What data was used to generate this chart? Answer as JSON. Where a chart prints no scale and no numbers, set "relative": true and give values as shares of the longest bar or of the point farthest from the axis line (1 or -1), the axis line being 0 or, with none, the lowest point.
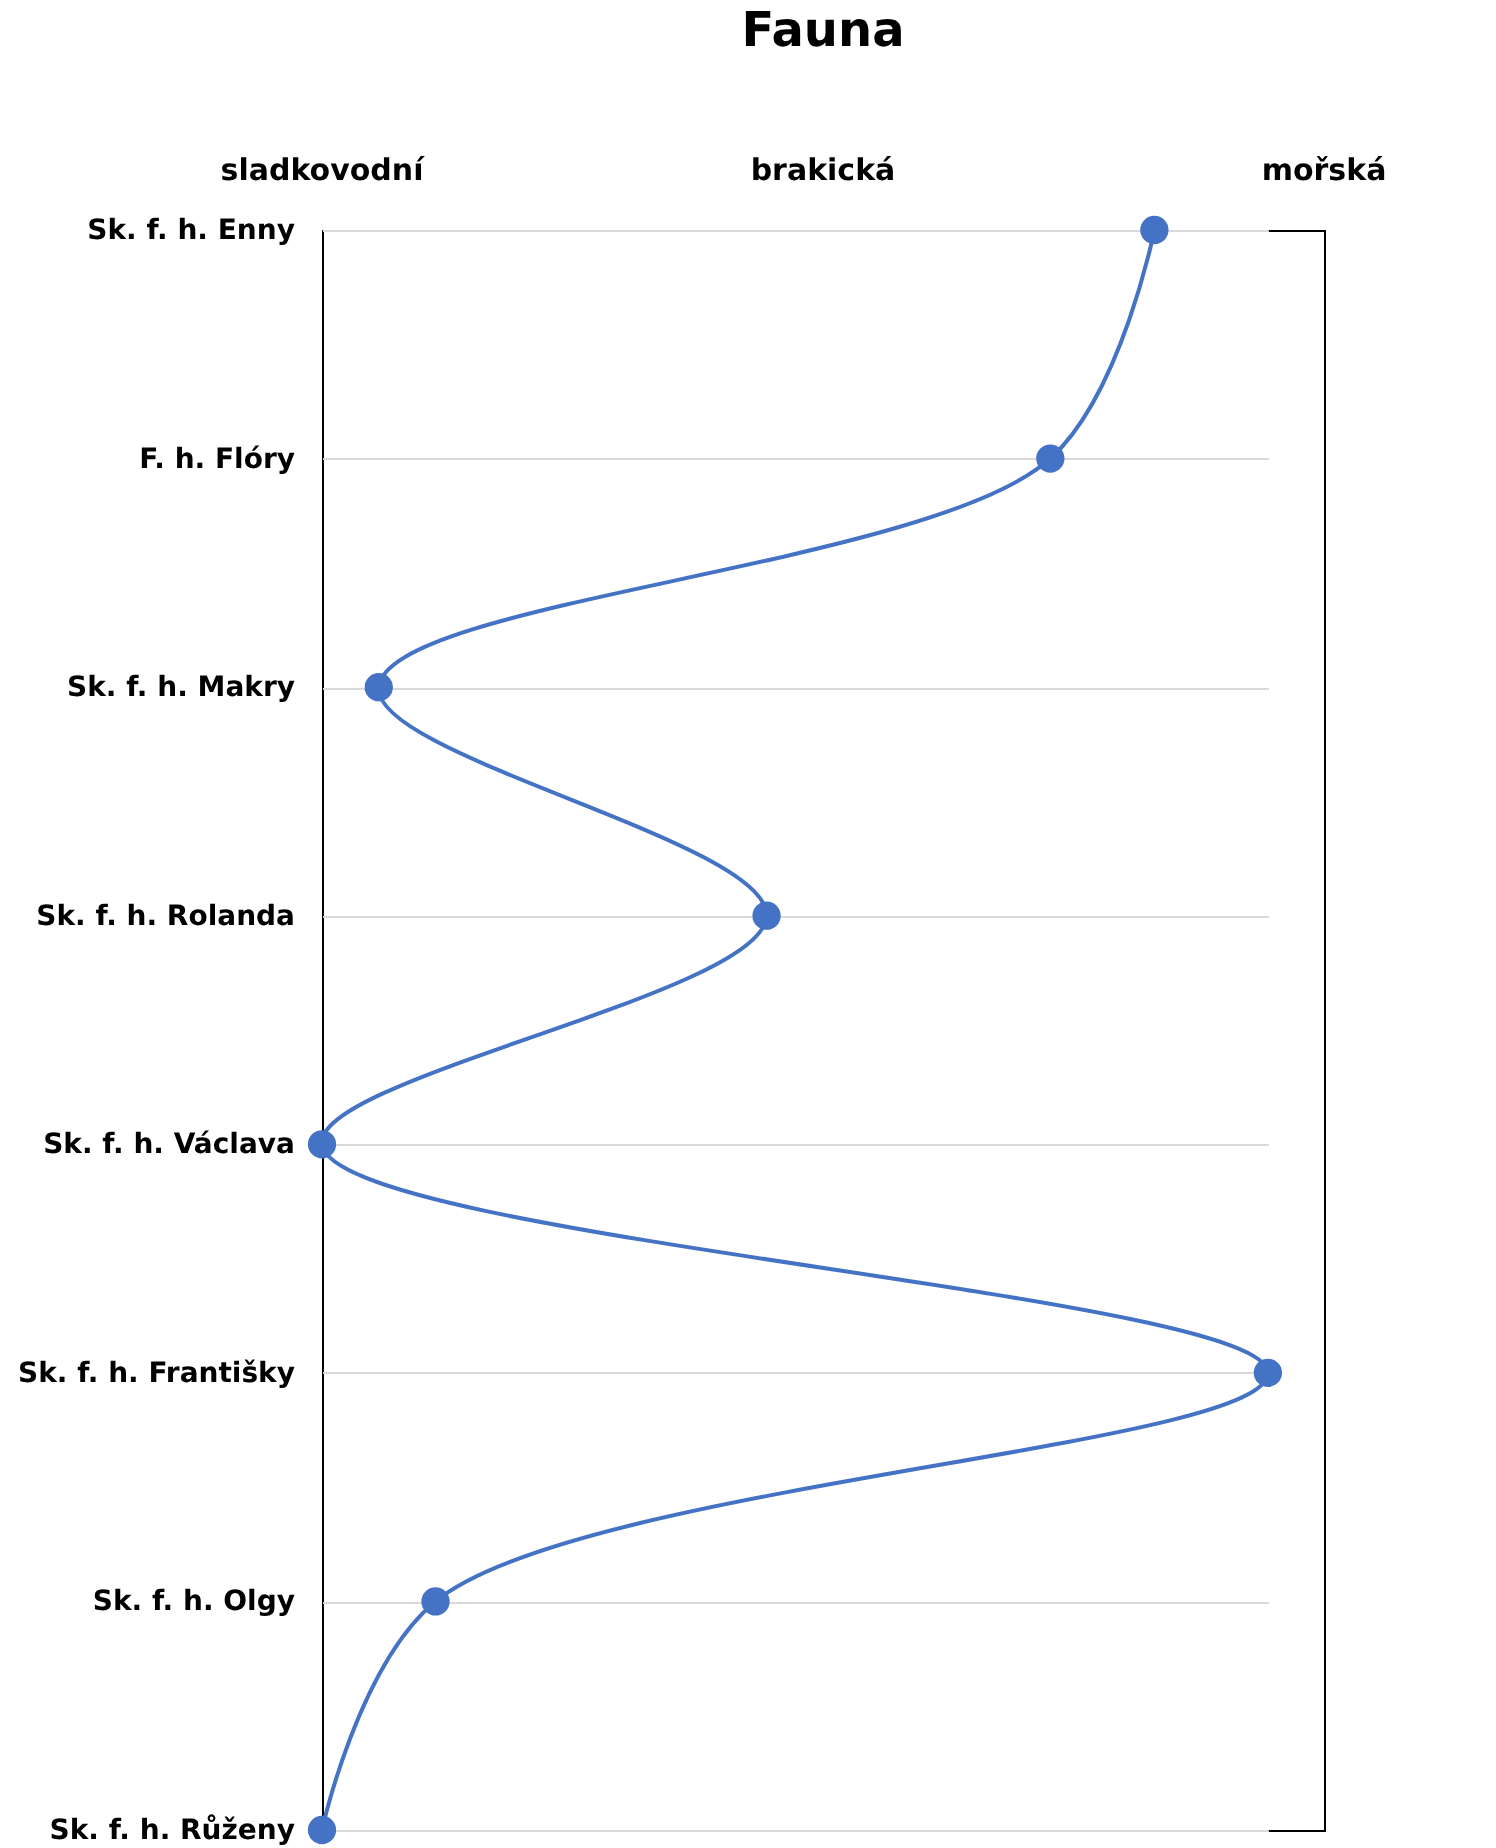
{
  "chart_data": {
    "type": "line",
    "title": "Fauna",
    "orientation": "horizontal",
    "relative": true,
    "categories": [
      "Sk. f. h. Enny",
      "F. h. Flóry",
      "Sk. f. h. Makry",
      "Sk. f. h. Rolanda",
      "Sk. f. h. Václava",
      "Sk. f. h. Františky",
      "Sk. f. h. Olgy",
      "Sk. f. h. Růženy"
    ],
    "values": [
      0.88,
      0.77,
      0.06,
      0.47,
      0,
      1,
      0.12,
      0
    ],
    "color": "#4472c4",
    "annotations": [
      "sladkovodní",
      "brakická",
      "mořská"
    ],
    "grid": "y",
    "marker": "circle"
  }
}
